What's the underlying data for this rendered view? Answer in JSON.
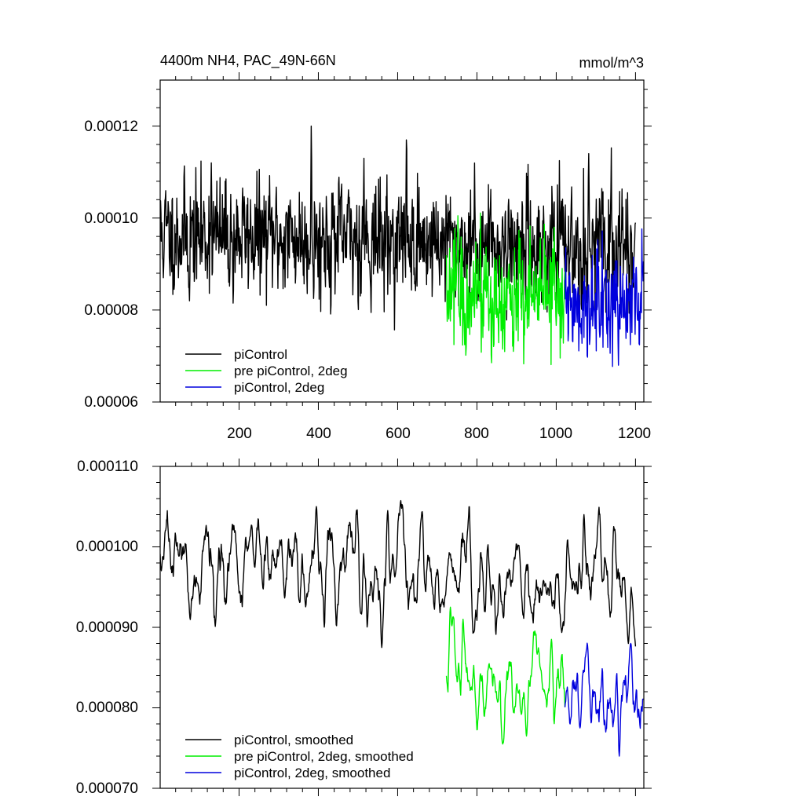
{
  "chart_data": [
    {
      "type": "line",
      "title": "4400m NH4, PAC_49N-66N",
      "units_label": "mmol/m^3",
      "xlabel": "",
      "ylabel": "",
      "xlim": [
        1,
        1221
      ],
      "ylim": [
        6e-05,
        0.00013
      ],
      "x_ticks": [
        200,
        400,
        600,
        800,
        1000,
        1200
      ],
      "x_tick_labels": [
        "200",
        "400",
        "600",
        "800",
        "1000",
        "1200"
      ],
      "y_ticks": [
        6e-05,
        8e-05,
        0.0001,
        0.00012
      ],
      "y_tick_labels": [
        "0.00006",
        "0.00008",
        "0.00010",
        "0.00012"
      ],
      "legend_position": "bottom-left",
      "series": [
        {
          "name": "piControl",
          "color": "#000000",
          "x_start": 1,
          "x_end": 1200,
          "mean": 9.65e-05,
          "trend_end_mean": 9.35e-05,
          "noise": 6.2e-06,
          "peaks": [
            [
              382,
              0.00012
            ],
            [
              622,
              0.000117
            ],
            [
              1082,
              0.000114
            ],
            [
              130,
              0.000112
            ],
            [
              515,
              0.000113
            ],
            [
              75,
              8.2e-05
            ],
            [
              185,
              8.15e-05
            ],
            [
              388,
              8.25e-05
            ]
          ]
        },
        {
          "name": "pre piControl, 2deg",
          "color": "#00ee00",
          "x_start": 723,
          "x_end": 1022,
          "mean": 8.35e-05,
          "trend_end_mean": 8.25e-05,
          "noise": 5.8e-06,
          "peaks": [
            [
              752,
              0.0001005
            ],
            [
              995,
              9.8e-05
            ],
            [
              892,
              7.1e-05
            ],
            [
              865,
              7.15e-05
            ]
          ]
        },
        {
          "name": "piControl, 2deg",
          "color": "#0000dd",
          "x_start": 1022,
          "x_end": 1220,
          "mean": 8.15e-05,
          "trend_end_mean": 8.1e-05,
          "noise": 5.5e-06,
          "peaks": [
            [
              1157,
              6.8e-05
            ],
            [
              1195,
              9.15e-05
            ]
          ]
        }
      ]
    },
    {
      "type": "line",
      "title": "",
      "xlabel": "",
      "ylabel": "",
      "xlim": [
        1,
        1221
      ],
      "ylim": [
        7e-05,
        0.00011
      ],
      "x_ticks": [
        200,
        400,
        600,
        800,
        1000,
        1200
      ],
      "y_ticks": [
        7e-05,
        8e-05,
        9e-05,
        0.0001,
        0.00011
      ],
      "y_tick_labels": [
        "0.000070",
        "0.000080",
        "0.000090",
        "0.000100",
        "0.000110"
      ],
      "legend_position": "bottom-left",
      "series": [
        {
          "name": "piControl, smoothed",
          "color": "#000000",
          "x_start": 1,
          "x_end": 1200,
          "mean": 9.75e-05,
          "trend_end_mean": 9.55e-05,
          "noise": 3.2e-06,
          "peaks": [
            [
              395,
              0.000105
            ],
            [
              575,
              0.0001045
            ],
            [
              1070,
              0.000104
            ],
            [
              560,
              8.75e-05
            ],
            [
              1182,
              8.8e-05
            ],
            [
              95,
              9.55e-05
            ]
          ]
        },
        {
          "name": "pre piControl, 2deg, smoothed",
          "color": "#00ee00",
          "x_start": 723,
          "x_end": 1022,
          "mean": 8.28e-05,
          "trend_end_mean": 8.15e-05,
          "noise": 2.8e-06,
          "peaks": [
            [
              733,
              9.25e-05
            ],
            [
              765,
              9.1e-05
            ],
            [
              988,
              8.85e-05
            ],
            [
              865,
              7.55e-05
            ],
            [
              925,
              7.65e-05
            ]
          ]
        },
        {
          "name": "piControl, 2deg, smoothed",
          "color": "#0000dd",
          "x_start": 1022,
          "x_end": 1220,
          "mean": 8.15e-05,
          "trend_end_mean": 8.1e-05,
          "noise": 2.5e-06,
          "peaks": [
            [
              1159,
              7.4e-05
            ],
            [
              1188,
              8.8e-05
            ],
            [
              1060,
              7.75e-05
            ]
          ]
        }
      ]
    }
  ]
}
